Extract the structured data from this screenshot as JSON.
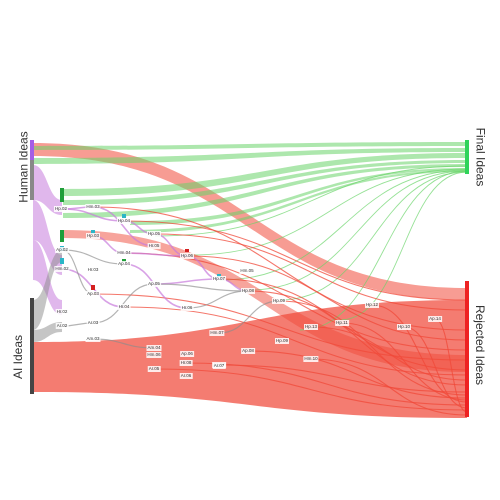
{
  "side_labels": {
    "human_ideas": "Human Ideas",
    "ai_ideas": "AI Ideas",
    "final_ideas": "Final Ideas",
    "rejected_ideas": "Rejected Ideas"
  },
  "colors": {
    "human_bar": "#a45ee5",
    "ai_bar": "#444444",
    "final_bar": "#2fd35a",
    "rejected_bar": "#ee2222",
    "final_flow": "#6ad46a",
    "rejected_flow": "#f04a3a",
    "human_flow": "#c77bdc",
    "ai_flow": "#8c8c8c",
    "teal_node": "#2bb5c7",
    "green_node": "#1f9e3a",
    "red_node": "#d42020"
  },
  "nodes": [
    {
      "id": "Hp.02",
      "label": "Hp.02"
    },
    {
      "id": "Hm.03",
      "label": "Hm.03"
    },
    {
      "id": "Hp.03",
      "label": "Hp.03"
    },
    {
      "id": "Hp.04",
      "label": "Hp.04"
    },
    {
      "id": "Hm.04",
      "label": "Hm.04"
    },
    {
      "id": "Ap.04",
      "label": "Ap.04"
    },
    {
      "id": "Ap.02",
      "label": "Ap.02"
    },
    {
      "id": "Hm.02",
      "label": "Hm.02"
    },
    {
      "id": "Hr.03",
      "label": "Hr.03"
    },
    {
      "id": "Hp.05",
      "label": "Hp.05"
    },
    {
      "id": "Hr.05",
      "label": "Hr.05"
    },
    {
      "id": "Hp.06",
      "label": "Hp.06"
    },
    {
      "id": "Ap.03",
      "label": "Ap.03"
    },
    {
      "id": "Hr.02",
      "label": "Hr.02"
    },
    {
      "id": "Ar.03",
      "label": "Ar.03"
    },
    {
      "id": "Ar.02",
      "label": "Ar.02"
    },
    {
      "id": "Hr.04",
      "label": "Hr.04"
    },
    {
      "id": "Am.03",
      "label": "Am.03"
    },
    {
      "id": "Ap.05",
      "label": "Ap.05"
    },
    {
      "id": "Hp.07",
      "label": "Hp.07"
    },
    {
      "id": "Hr.06",
      "label": "Hr.06"
    },
    {
      "id": "Hm.05",
      "label": "Hm.05"
    },
    {
      "id": "Hp.08",
      "label": "Hp.08"
    },
    {
      "id": "Hm.06",
      "label": "Hm.06"
    },
    {
      "id": "Hp.09",
      "label": "Hp.09"
    },
    {
      "id": "Hm.07",
      "label": "Hm.07"
    },
    {
      "id": "Hp.12",
      "label": "Hp.12"
    },
    {
      "id": "Hp.10",
      "label": "Hp.10"
    },
    {
      "id": "Hp.11",
      "label": "Hp.11"
    },
    {
      "id": "Ap.14",
      "label": "Ap.14"
    },
    {
      "id": "Hp.13",
      "label": "Hp.13"
    },
    {
      "id": "Am.04",
      "label": "Am.04"
    },
    {
      "id": "Hr.08",
      "label": "Hr.08"
    },
    {
      "id": "Ap.06",
      "label": "Ap.06"
    },
    {
      "id": "Ap.07",
      "label": "Ap.07"
    },
    {
      "id": "Ap.08",
      "label": "Ap.08"
    },
    {
      "id": "Ar.05",
      "label": "Ar.05"
    },
    {
      "id": "Ar.06",
      "label": "Ar.06"
    },
    {
      "id": "Ar.07",
      "label": "Ar.07"
    },
    {
      "id": "Hp.09b",
      "label": "Hp.09"
    },
    {
      "id": "Hm.10",
      "label": "Hm.10"
    }
  ]
}
